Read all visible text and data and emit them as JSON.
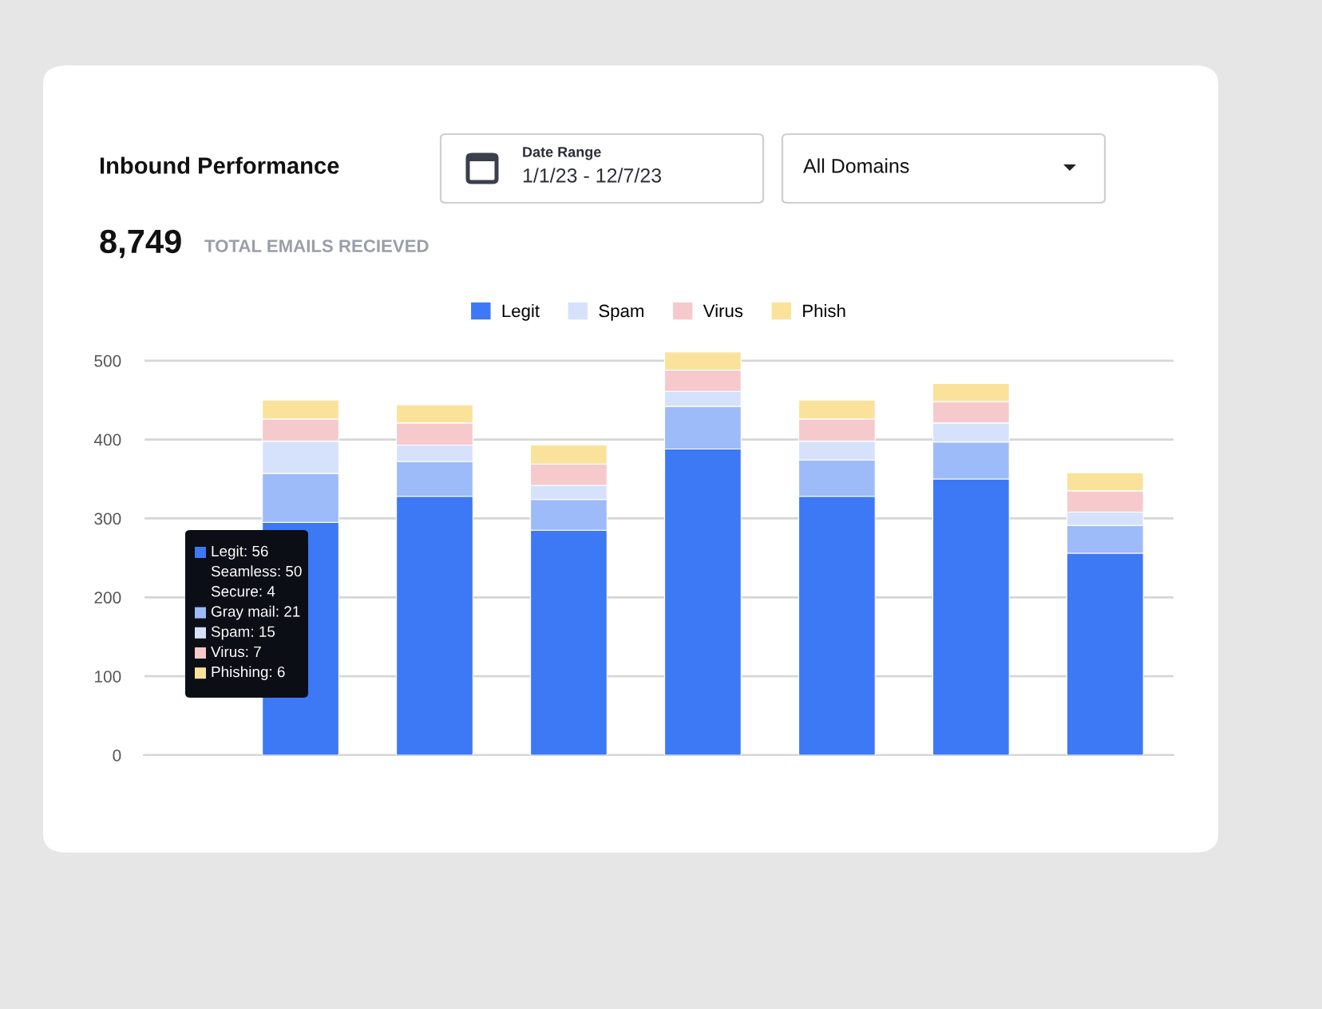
{
  "chart_data": {
    "type": "bar",
    "stacked": true,
    "title": "Inbound Performance",
    "subtitle": "8,749",
    "categories": [
      null,
      null,
      null,
      null,
      null,
      null,
      null
    ],
    "series": [
      {
        "name": "Legit",
        "color": "#3d78f5",
        "values": [
          295,
          328,
          285,
          388,
          328,
          350,
          256
        ]
      },
      {
        "color": "#9dbaf9",
        "values": [
          62,
          44,
          39,
          54,
          46,
          47,
          35
        ]
      },
      {
        "name": "Spam",
        "color": "#d6e2fc",
        "values": [
          41,
          21,
          18,
          19,
          24,
          24,
          17
        ]
      },
      {
        "name": "Virus",
        "color": "#f6c9cd",
        "values": [
          28,
          28,
          27,
          27,
          28,
          27,
          27
        ]
      },
      {
        "name": "Phish",
        "color": "#fbe29b",
        "values": [
          24,
          23,
          24,
          23,
          24,
          23,
          23
        ]
      }
    ],
    "ylim": [
      0,
      520
    ],
    "yticks": [
      0,
      100,
      200,
      300,
      400,
      500
    ],
    "grid": "y",
    "legend": "top",
    "annotations": [
      "TOTAL EMAILS RECIEVED",
      "Date Range",
      "1/1/23 - 12/7/23",
      "All Domains",
      "Legit: 56",
      "Seamless: 50",
      "Secure: 4",
      "Gray mail: 21",
      "Spam: 15",
      "Virus: 7",
      "Phishing: 6"
    ]
  }
}
